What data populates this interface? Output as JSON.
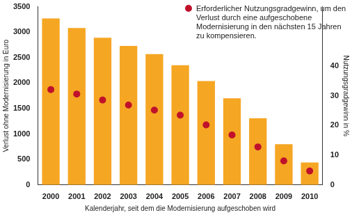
{
  "chart_data": {
    "type": "bar",
    "categories": [
      "2000",
      "2001",
      "2002",
      "2003",
      "2004",
      "2005",
      "2006",
      "2007",
      "2008",
      "2009",
      "2010"
    ],
    "x_label": "Kalenderjahr, seit dem die Modernisierung aufgeschoben wird",
    "y_label": "Verlust ohne Modernisierung in Euro",
    "y2_label": "Nutzungsgradgewinn in %",
    "series": [
      {
        "type": "bar",
        "color": "#f5a623",
        "values": [
          3270,
          3080,
          2890,
          2730,
          2570,
          2350,
          2040,
          1700,
          1310,
          800,
          440
        ]
      },
      {
        "name": "Erforderlicher Nutzungsgradgewinn, um den Verlust durch eine aufgeschobene Modernisierung in den nächsten 15 Jahren zu kompensieren.",
        "type": "scatter",
        "marker": "circle",
        "color": "#c0112b",
        "axis": "y2",
        "values": [
          32.1,
          30.6,
          28.6,
          26.9,
          25.2,
          23.5,
          20.2,
          16.8,
          12.8,
          8.1,
          4.7
        ]
      }
    ],
    "ylim": [
      0,
      3500
    ],
    "yticks": [
      0,
      500,
      1000,
      1500,
      2000,
      2500,
      3000,
      3500
    ],
    "y2lim": [
      0,
      60
    ],
    "y2ticks": [
      0,
      10,
      20,
      30,
      40
    ],
    "grid": false,
    "legend": "top-right"
  }
}
